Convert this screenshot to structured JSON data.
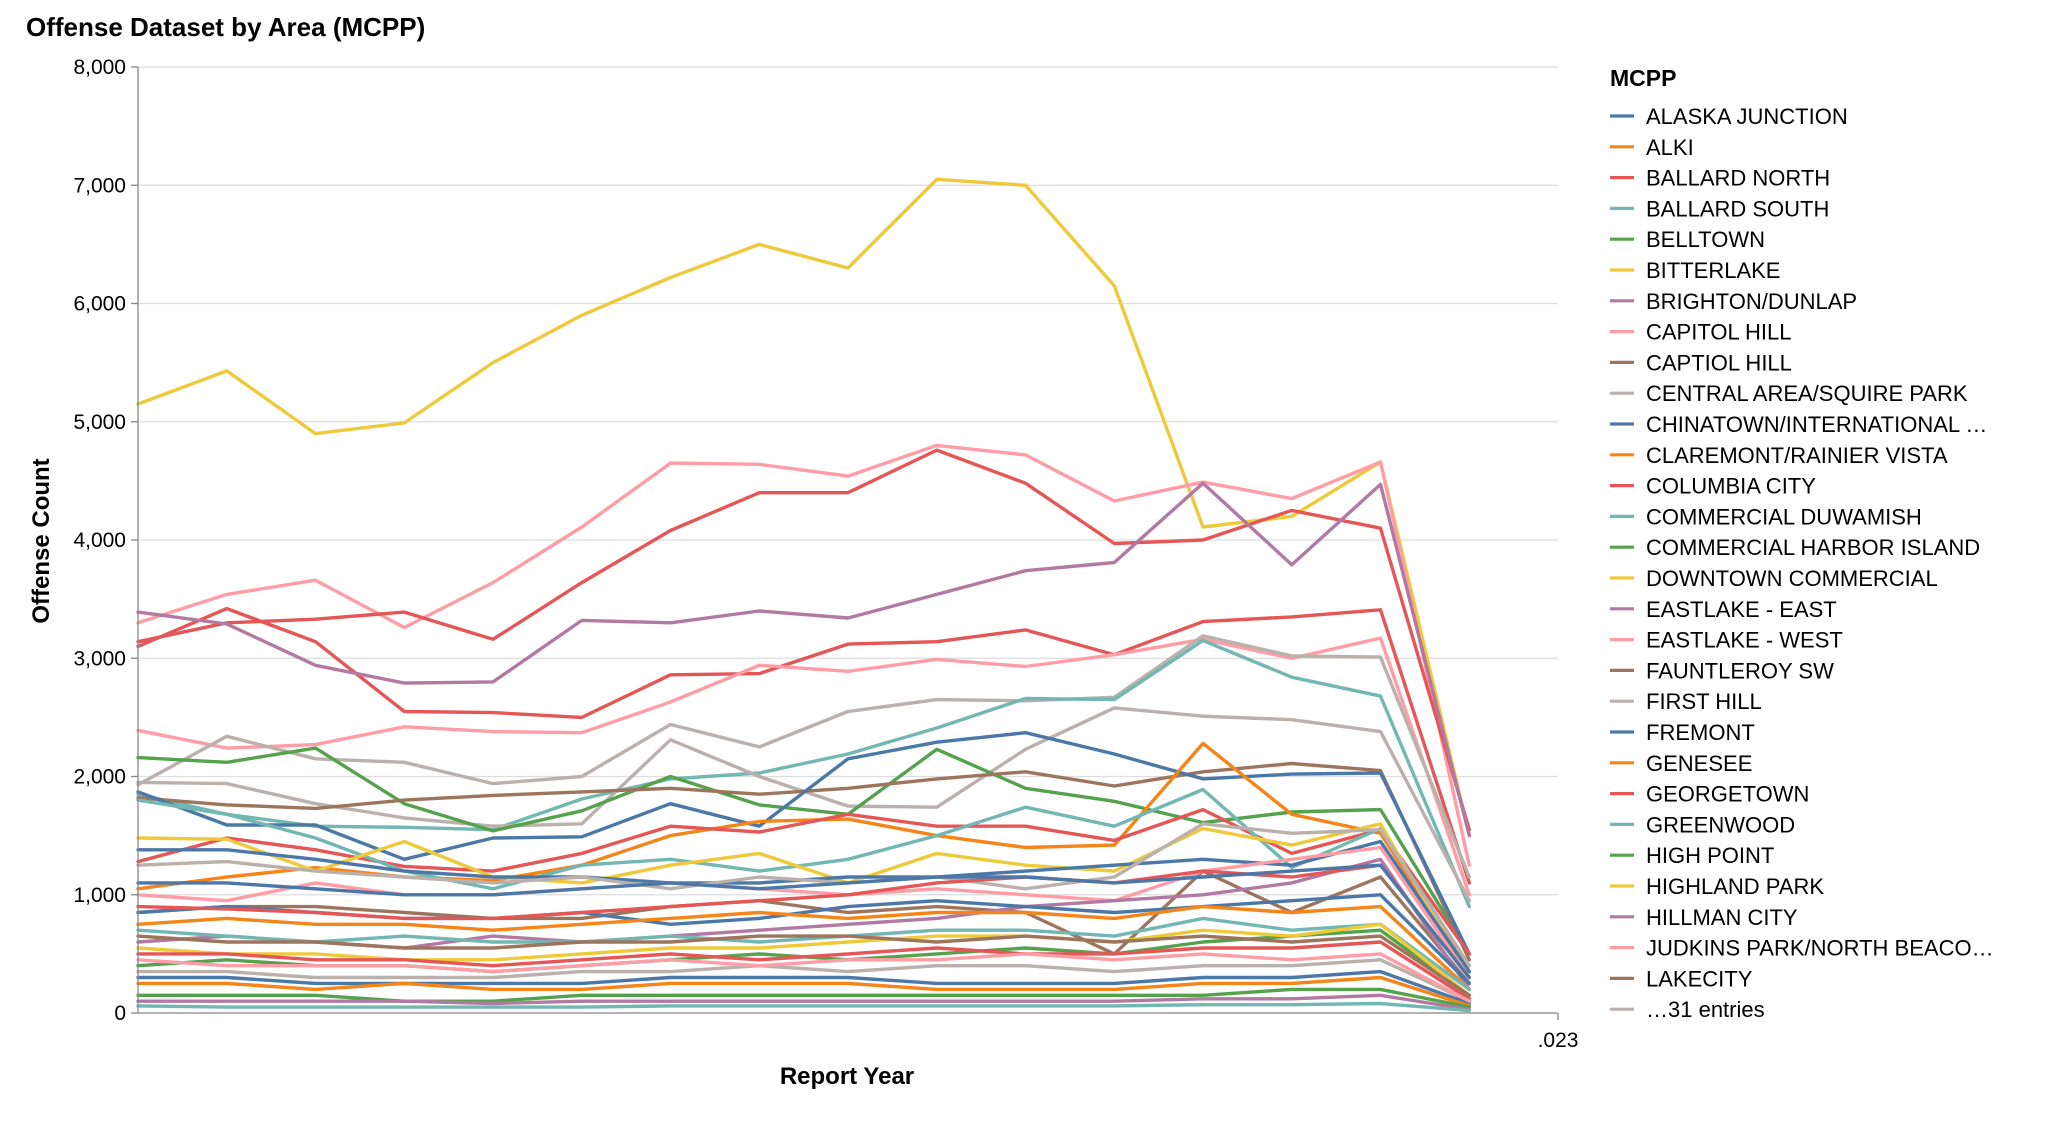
{
  "chart_data": {
    "type": "line",
    "title": "Offense Dataset by Area (MCPP)",
    "xlabel": "Report Year",
    "ylabel": "Offense Count",
    "x_tick_labels": [
      ".023"
    ],
    "y_ticks": [
      "0",
      "1,000",
      "2,000",
      "3,000",
      "4,000",
      "5,000",
      "6,000",
      "7,000",
      "8,000"
    ],
    "ylim": [
      0,
      8000
    ],
    "x_points": 17,
    "grid": true,
    "legend": {
      "title": "MCPP",
      "placement": "right",
      "entries": [
        {
          "label": "ALASKA JUNCTION",
          "color": "#4c78a8"
        },
        {
          "label": "ALKI",
          "color": "#f58518"
        },
        {
          "label": "BALLARD NORTH",
          "color": "#e45756"
        },
        {
          "label": "BALLARD SOUTH",
          "color": "#72b7b2"
        },
        {
          "label": "BELLTOWN",
          "color": "#54a24b"
        },
        {
          "label": "BITTERLAKE",
          "color": "#eeca3b"
        },
        {
          "label": "BRIGHTON/DUNLAP",
          "color": "#b279a2"
        },
        {
          "label": "CAPITOL HILL",
          "color": "#ff9da6"
        },
        {
          "label": "CAPTIOL HILL",
          "color": "#9d755d"
        },
        {
          "label": "CENTRAL AREA/SQUIRE PARK",
          "color": "#bab0ac"
        },
        {
          "label": "CHINATOWN/INTERNATIONAL …",
          "color": "#4c78a8"
        },
        {
          "label": "CLAREMONT/RAINIER VISTA",
          "color": "#f58518"
        },
        {
          "label": "COLUMBIA CITY",
          "color": "#e45756"
        },
        {
          "label": "COMMERCIAL DUWAMISH",
          "color": "#72b7b2"
        },
        {
          "label": "COMMERCIAL HARBOR ISLAND",
          "color": "#54a24b"
        },
        {
          "label": "DOWNTOWN COMMERCIAL",
          "color": "#eeca3b"
        },
        {
          "label": "EASTLAKE - EAST",
          "color": "#b279a2"
        },
        {
          "label": "EASTLAKE - WEST",
          "color": "#ff9da6"
        },
        {
          "label": "FAUNTLEROY SW",
          "color": "#9d755d"
        },
        {
          "label": "FIRST HILL",
          "color": "#bab0ac"
        },
        {
          "label": "FREMONT",
          "color": "#4c78a8"
        },
        {
          "label": "GENESEE",
          "color": "#f58518"
        },
        {
          "label": "GEORGETOWN",
          "color": "#e45756"
        },
        {
          "label": "GREENWOOD",
          "color": "#72b7b2"
        },
        {
          "label": "HIGH POINT",
          "color": "#54a24b"
        },
        {
          "label": "HIGHLAND PARK",
          "color": "#eeca3b"
        },
        {
          "label": "HILLMAN CITY",
          "color": "#b279a2"
        },
        {
          "label": "JUDKINS PARK/NORTH BEACO…",
          "color": "#ff9da6"
        },
        {
          "label": "LAKECITY",
          "color": "#9d755d"
        },
        {
          "label": "…31 entries",
          "color": "#bab0ac"
        }
      ]
    },
    "series": [
      {
        "color": "#eeca3b",
        "values": [
          5150,
          5430,
          4900,
          4990,
          5500,
          5900,
          6220,
          6500,
          6300,
          7050,
          7000,
          6150,
          4110,
          4200,
          4660,
          1500,
          null
        ]
      },
      {
        "color": "#ff9da6",
        "values": [
          3300,
          3540,
          3660,
          3260,
          3640,
          4110,
          4650,
          4640,
          4540,
          4800,
          4720,
          4330,
          4490,
          4350,
          4660,
          1250,
          null
        ]
      },
      {
        "color": "#e45756",
        "values": [
          3100,
          3420,
          3140,
          2550,
          2540,
          2500,
          2860,
          2870,
          3120,
          3140,
          3240,
          3030,
          3310,
          3350,
          3410,
          1100,
          null
        ]
      },
      {
        "color": "#e45756",
        "values": [
          3140,
          3300,
          3330,
          3390,
          3160,
          3640,
          4080,
          4400,
          4400,
          4760,
          4480,
          3970,
          4000,
          4250,
          4100,
          1550,
          null
        ]
      },
      {
        "color": "#b279a2",
        "values": [
          3390,
          3290,
          2940,
          2790,
          2800,
          3320,
          3300,
          3400,
          3340,
          3540,
          3740,
          3810,
          4480,
          3790,
          4470,
          1500,
          null
        ]
      },
      {
        "color": "#ff9da6",
        "values": [
          2390,
          2240,
          2270,
          2420,
          2380,
          2370,
          2630,
          2940,
          2890,
          2990,
          2930,
          3030,
          3160,
          3000,
          3170,
          1000,
          null
        ]
      },
      {
        "color": "#bab0ac",
        "values": [
          1930,
          2340,
          2150,
          2120,
          1940,
          2000,
          2440,
          2250,
          2550,
          2650,
          2640,
          2670,
          3190,
          3020,
          3010,
          1150,
          null
        ]
      },
      {
        "color": "#72b7b2",
        "values": [
          1850,
          1680,
          1580,
          1570,
          1550,
          1810,
          1980,
          2030,
          2190,
          2410,
          2660,
          2650,
          3150,
          2840,
          2680,
          900,
          null
        ]
      },
      {
        "color": "#bab0ac",
        "values": [
          1950,
          1940,
          1770,
          1650,
          1580,
          1600,
          2310,
          2000,
          1750,
          1740,
          2230,
          2580,
          2510,
          2480,
          2380,
          950,
          null
        ]
      },
      {
        "color": "#54a24b",
        "values": [
          2160,
          2120,
          2240,
          1770,
          1540,
          1710,
          2000,
          1760,
          1680,
          2230,
          1900,
          1790,
          1610,
          1700,
          1720,
          500,
          null
        ]
      },
      {
        "color": "#9d755d",
        "values": [
          1820,
          1760,
          1730,
          1800,
          1840,
          1870,
          1900,
          1850,
          1900,
          1980,
          2040,
          1920,
          2040,
          2110,
          2050,
          450,
          null
        ]
      },
      {
        "color": "#4c78a8",
        "values": [
          1870,
          1590,
          1590,
          1300,
          1480,
          1490,
          1770,
          1580,
          2150,
          2290,
          2370,
          2190,
          1980,
          2020,
          2030,
          500,
          null
        ]
      },
      {
        "color": "#f58518",
        "values": [
          1050,
          1150,
          1230,
          1150,
          1120,
          1250,
          1500,
          1620,
          1640,
          1500,
          1400,
          1420,
          2280,
          1680,
          1520,
          350,
          null
        ]
      },
      {
        "color": "#e45756",
        "values": [
          1280,
          1480,
          1380,
          1240,
          1200,
          1350,
          1580,
          1530,
          1680,
          1580,
          1580,
          1460,
          1720,
          1350,
          1550,
          500,
          null
        ]
      },
      {
        "color": "#72b7b2",
        "values": [
          1800,
          1680,
          1480,
          1200,
          1050,
          1250,
          1300,
          1200,
          1300,
          1500,
          1740,
          1580,
          1890,
          1230,
          1560,
          400,
          null
        ]
      },
      {
        "color": "#eeca3b",
        "values": [
          1480,
          1470,
          1200,
          1450,
          1150,
          1100,
          1250,
          1350,
          1100,
          1350,
          1250,
          1200,
          1560,
          1420,
          1600,
          300,
          null
        ]
      },
      {
        "color": "#4c78a8",
        "values": [
          1380,
          1380,
          1300,
          1200,
          1150,
          1150,
          1100,
          1100,
          1150,
          1150,
          1200,
          1250,
          1300,
          1250,
          1450,
          350,
          null
        ]
      },
      {
        "color": "#bab0ac",
        "values": [
          1250,
          1280,
          1200,
          1150,
          1100,
          1150,
          1050,
          1150,
          1100,
          1150,
          1050,
          1150,
          1600,
          1520,
          1550,
          400,
          null
        ]
      },
      {
        "color": "#9d755d",
        "values": [
          850,
          900,
          900,
          850,
          800,
          800,
          900,
          950,
          850,
          900,
          850,
          500,
          1200,
          850,
          1150,
          250,
          null
        ]
      },
      {
        "color": "#ff9da6",
        "values": [
          1000,
          950,
          1100,
          1000,
          1000,
          1050,
          1100,
          1050,
          1000,
          1050,
          1000,
          950,
          1200,
          1300,
          1400,
          300,
          null
        ]
      },
      {
        "color": "#b279a2",
        "values": [
          600,
          650,
          600,
          550,
          650,
          600,
          650,
          700,
          750,
          800,
          900,
          950,
          1000,
          1100,
          1300,
          200,
          null
        ]
      },
      {
        "color": "#4c78a8",
        "values": [
          850,
          900,
          850,
          800,
          800,
          850,
          750,
          800,
          900,
          950,
          900,
          850,
          900,
          950,
          1000,
          250,
          null
        ]
      },
      {
        "color": "#f58518",
        "values": [
          750,
          800,
          750,
          750,
          700,
          750,
          800,
          850,
          800,
          850,
          850,
          800,
          900,
          850,
          900,
          200,
          null
        ]
      },
      {
        "color": "#54a24b",
        "values": [
          400,
          450,
          400,
          400,
          350,
          400,
          450,
          500,
          450,
          500,
          550,
          500,
          600,
          650,
          700,
          150,
          null
        ]
      },
      {
        "color": "#72b7b2",
        "values": [
          700,
          650,
          600,
          650,
          600,
          600,
          650,
          600,
          650,
          700,
          700,
          650,
          800,
          700,
          750,
          200,
          null
        ]
      },
      {
        "color": "#eeca3b",
        "values": [
          550,
          500,
          500,
          450,
          450,
          500,
          550,
          550,
          600,
          650,
          650,
          600,
          700,
          650,
          750,
          150,
          null
        ]
      },
      {
        "color": "#e45756",
        "values": [
          500,
          500,
          450,
          450,
          400,
          450,
          500,
          450,
          500,
          550,
          500,
          500,
          550,
          550,
          600,
          120,
          null
        ]
      },
      {
        "color": "#9d755d",
        "values": [
          650,
          600,
          600,
          550,
          550,
          600,
          600,
          650,
          650,
          600,
          650,
          600,
          650,
          600,
          650,
          150,
          null
        ]
      },
      {
        "color": "#bab0ac",
        "values": [
          350,
          350,
          300,
          300,
          300,
          350,
          350,
          400,
          350,
          400,
          400,
          350,
          400,
          400,
          450,
          100,
          null
        ]
      },
      {
        "color": "#4c78a8",
        "values": [
          300,
          300,
          250,
          250,
          250,
          250,
          300,
          300,
          300,
          250,
          250,
          250,
          300,
          300,
          350,
          80,
          null
        ]
      },
      {
        "color": "#f58518",
        "values": [
          250,
          250,
          200,
          250,
          200,
          200,
          250,
          250,
          250,
          200,
          200,
          200,
          250,
          250,
          300,
          60,
          null
        ]
      },
      {
        "color": "#54a24b",
        "values": [
          150,
          150,
          150,
          100,
          100,
          150,
          150,
          150,
          150,
          150,
          150,
          150,
          150,
          200,
          200,
          50,
          null
        ]
      },
      {
        "color": "#b279a2",
        "values": [
          100,
          100,
          100,
          100,
          80,
          100,
          100,
          100,
          100,
          100,
          100,
          100,
          120,
          120,
          150,
          30,
          null
        ]
      },
      {
        "color": "#72b7b2",
        "values": [
          60,
          50,
          50,
          50,
          50,
          50,
          60,
          60,
          60,
          60,
          60,
          60,
          70,
          70,
          80,
          20,
          null
        ]
      },
      {
        "color": "#ff9da6",
        "values": [
          450,
          400,
          400,
          400,
          350,
          400,
          450,
          400,
          450,
          450,
          500,
          450,
          500,
          450,
          500,
          100,
          null
        ]
      },
      {
        "color": "#e45756",
        "values": [
          900,
          880,
          850,
          800,
          800,
          850,
          900,
          950,
          1000,
          1100,
          1150,
          1100,
          1200,
          1150,
          1250,
          300,
          null
        ]
      },
      {
        "color": "#4c78a8",
        "values": [
          1100,
          1100,
          1050,
          1000,
          1000,
          1050,
          1100,
          1050,
          1100,
          1150,
          1150,
          1100,
          1150,
          1200,
          1250,
          300,
          null
        ]
      }
    ]
  }
}
